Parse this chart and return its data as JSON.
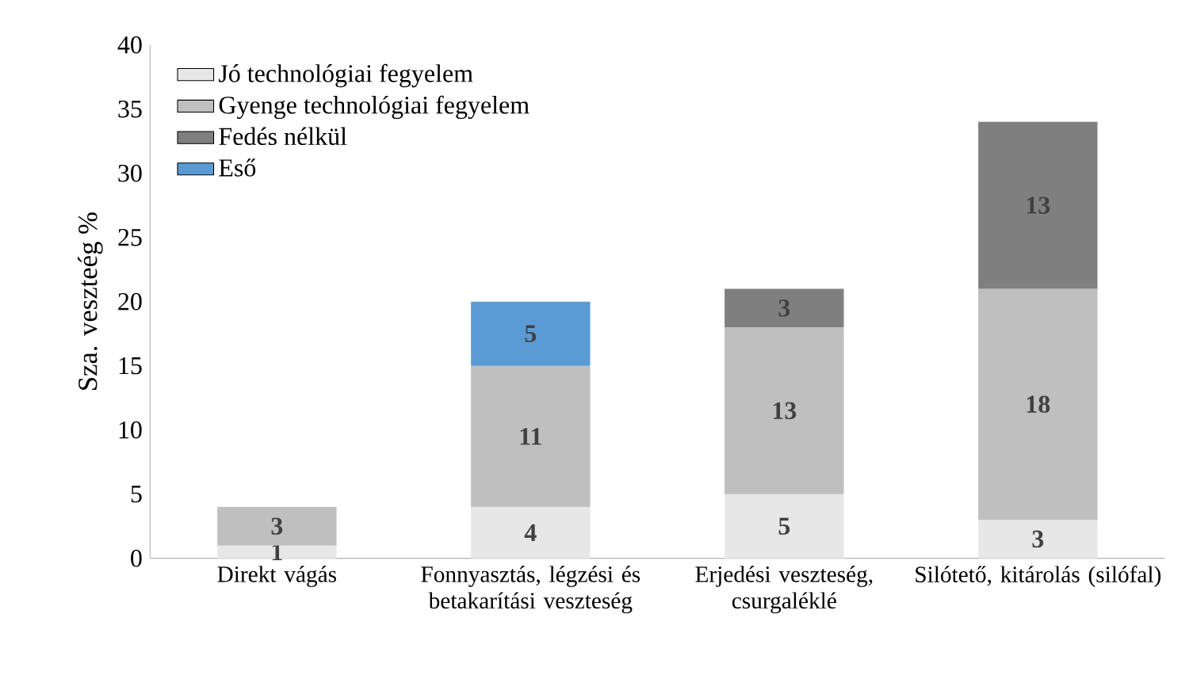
{
  "chart_data": {
    "type": "bar",
    "stacked": true,
    "ylabel": "Sza. veszteég %",
    "categories": [
      "Direkt vágás",
      "Fonnyasztás, légzési és betakarítási veszteség",
      "Erjedési veszteség, csurgaléklé",
      "Silótető, kitárolás (silófal)"
    ],
    "series": [
      {
        "name": "Jó technológiai fegyelem",
        "color": "#e7e7e7",
        "values": [
          1,
          4,
          5,
          3
        ]
      },
      {
        "name": "Gyenge technológiai fegyelem",
        "color": "#bfbfbf",
        "values": [
          3,
          11,
          13,
          18
        ]
      },
      {
        "name": "Fedés nélkül",
        "color": "#7f7f7f",
        "values": [
          null,
          null,
          3,
          13
        ]
      },
      {
        "name": "Eső",
        "color": "#5b9bd5",
        "values": [
          null,
          5,
          null,
          null
        ]
      }
    ],
    "ylim": [
      0,
      40
    ],
    "yticks": [
      0,
      5,
      10,
      15,
      20,
      25,
      30,
      35,
      40
    ],
    "data_labels": true,
    "legend": "top left"
  }
}
